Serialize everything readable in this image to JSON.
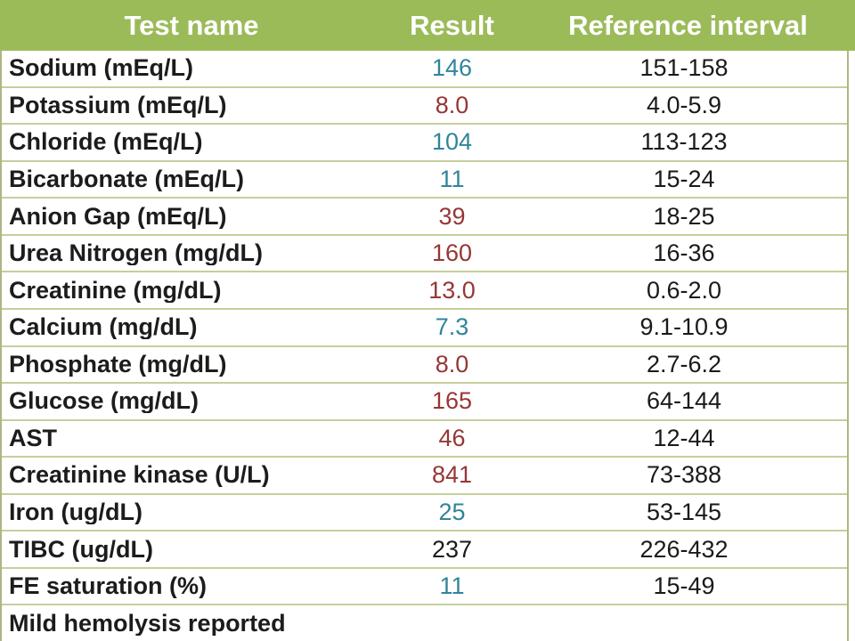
{
  "table": {
    "columns": [
      "Test name",
      "Result",
      "Reference interval"
    ],
    "rows": [
      {
        "test": "Sodium (mEq/L)",
        "result": "146",
        "reference": "151-158",
        "status": "low"
      },
      {
        "test": "Potassium (mEq/L)",
        "result": "8.0",
        "reference": "4.0-5.9",
        "status": "high"
      },
      {
        "test": "Chloride (mEq/L)",
        "result": "104",
        "reference": "113-123",
        "status": "low"
      },
      {
        "test": "Bicarbonate (mEq/L)",
        "result": "11",
        "reference": "15-24",
        "status": "low"
      },
      {
        "test": "Anion Gap (mEq/L)",
        "result": "39",
        "reference": "18-25",
        "status": "high"
      },
      {
        "test": "Urea Nitrogen (mg/dL)",
        "result": "160",
        "reference": "16-36",
        "status": "high"
      },
      {
        "test": "Creatinine (mg/dL)",
        "result": "13.0",
        "reference": "0.6-2.0",
        "status": "high"
      },
      {
        "test": "Calcium (mg/dL)",
        "result": "7.3",
        "reference": "9.1-10.9",
        "status": "low"
      },
      {
        "test": "Phosphate (mg/dL)",
        "result": "8.0",
        "reference": "2.7-6.2",
        "status": "high"
      },
      {
        "test": "Glucose (mg/dL)",
        "result": "165",
        "reference": "64-144",
        "status": "high"
      },
      {
        "test": "AST",
        "result": "46",
        "reference": "12-44",
        "status": "high"
      },
      {
        "test": "Creatinine kinase (U/L)",
        "result": "841",
        "reference": "73-388",
        "status": "high"
      },
      {
        "test": "Iron (ug/dL)",
        "result": "25",
        "reference": "53-145",
        "status": "low"
      },
      {
        "test": "TIBC (ug/dL)",
        "result": "237",
        "reference": "226-432",
        "status": "normal"
      },
      {
        "test": "FE saturation (%)",
        "result": "11",
        "reference": "15-49",
        "status": "low"
      },
      {
        "test": "Mild hemolysis reported",
        "result": "",
        "reference": "",
        "status": "note"
      }
    ],
    "colors": {
      "header_bg": "#9bbb59",
      "header_text": "#ffffff",
      "low": "#31849b",
      "high": "#953735",
      "normal": "#1a1a1a",
      "grid": "#c6cf9b",
      "side_border": "#aeb784"
    }
  }
}
